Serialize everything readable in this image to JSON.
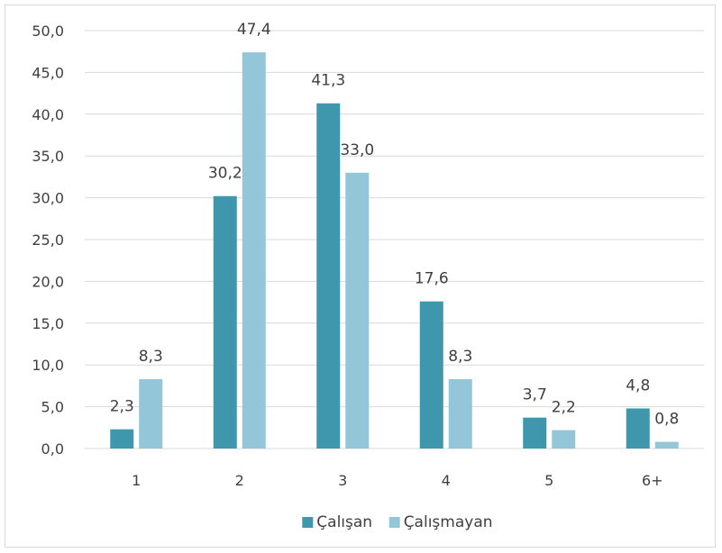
{
  "chart_data": {
    "type": "bar",
    "categories": [
      "1",
      "2",
      "3",
      "4",
      "5",
      "6+"
    ],
    "series": [
      {
        "name": "Çalışan",
        "values": [
          2.3,
          30.2,
          41.3,
          17.6,
          3.7,
          4.8
        ],
        "labels": [
          "2,3",
          "30,2",
          "41,3",
          "17,6",
          "3,7",
          "4,8"
        ],
        "color": "#3f97ae"
      },
      {
        "name": "Çalışmayan",
        "values": [
          8.3,
          47.4,
          33.0,
          8.3,
          2.2,
          0.8
        ],
        "labels": [
          "8,3",
          "47,4",
          "33,0",
          "8,3",
          "2,2",
          "0,8"
        ],
        "color": "#93c6d8"
      }
    ],
    "y_ticks": [
      "0,0",
      "5,0",
      "10,0",
      "15,0",
      "20,0",
      "25,0",
      "30,0",
      "35,0",
      "40,0",
      "45,0",
      "50,0"
    ],
    "ylim": [
      0,
      50
    ],
    "grid": true,
    "legend": "bottom",
    "title": "",
    "xlabel": "",
    "ylabel": ""
  },
  "colors": {
    "grid": "#d9d9d9",
    "text": "#404040"
  }
}
